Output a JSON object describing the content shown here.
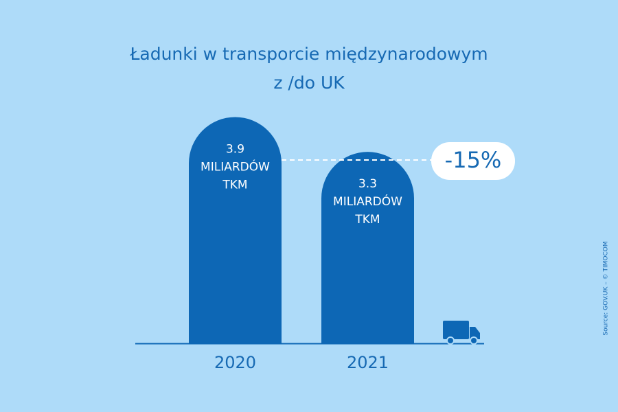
{
  "chart_data": {
    "type": "bar",
    "title": [
      "Ładunki w transporcie międzynarodowym",
      "z /do UK"
    ],
    "categories": [
      "2020",
      "2021"
    ],
    "values": [
      3.9,
      3.3
    ],
    "unit_lines": [
      "MILIARDÓW",
      "TKM"
    ],
    "color": "#0d67b5",
    "ylim": [
      0,
      4
    ],
    "annotation": "-15%",
    "source": "Source: GOV.UK – © TIMOCOM"
  }
}
